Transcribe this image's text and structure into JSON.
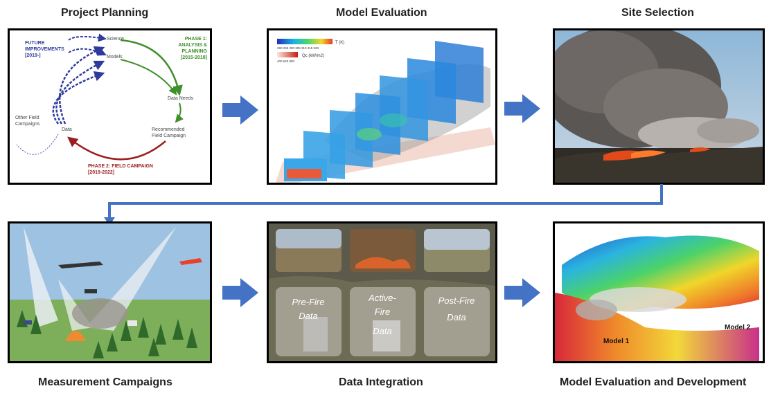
{
  "titles": {
    "project_planning": "Project Planning",
    "model_evaluation": "Model Evaluation",
    "site_selection": "Site Selection",
    "measurement_campaigns": "Measurement Campaigns",
    "data_integration": "Data Integration",
    "model_eval_dev": "Model Evaluation and Development"
  },
  "planning": {
    "future": [
      "FUTURE",
      "IMPROVEMENTS",
      "[2019-]"
    ],
    "phase1": [
      "PHASE 1:",
      "ANALYSIS &",
      "PLANNING",
      "[2015-2018]"
    ],
    "science": "Science",
    "models": "Models",
    "data_needs": "Data Needs",
    "recommended": [
      "Recommended",
      "Field Campaign"
    ],
    "data": "Data",
    "other": [
      "Other Field",
      "Campaigns"
    ],
    "phase2": [
      "PHASE 2: FIELD CAMPAIGN",
      "[2019-2022]"
    ],
    "colors": {
      "future": "#2e3a9c",
      "phase1": "#3f8f2a",
      "phase2": "#9c1e1e"
    }
  },
  "model_eval": {
    "legend_t_label": "T (K)",
    "legend_t_ticks": "290 295 300 305 310 315 320",
    "legend_q_label": "Qc (kW/m2)",
    "legend_q_ticks": "400 640 880"
  },
  "data_integration": {
    "labels": [
      [
        "Pre-Fire",
        "Data"
      ],
      [
        "Active-",
        "Fire",
        "Data"
      ],
      [
        "Post-Fire",
        "Data"
      ]
    ]
  },
  "model_dev": {
    "model1": "Model 1",
    "model2": "Model 2"
  },
  "colors": {
    "arrow": "#4472c4"
  }
}
